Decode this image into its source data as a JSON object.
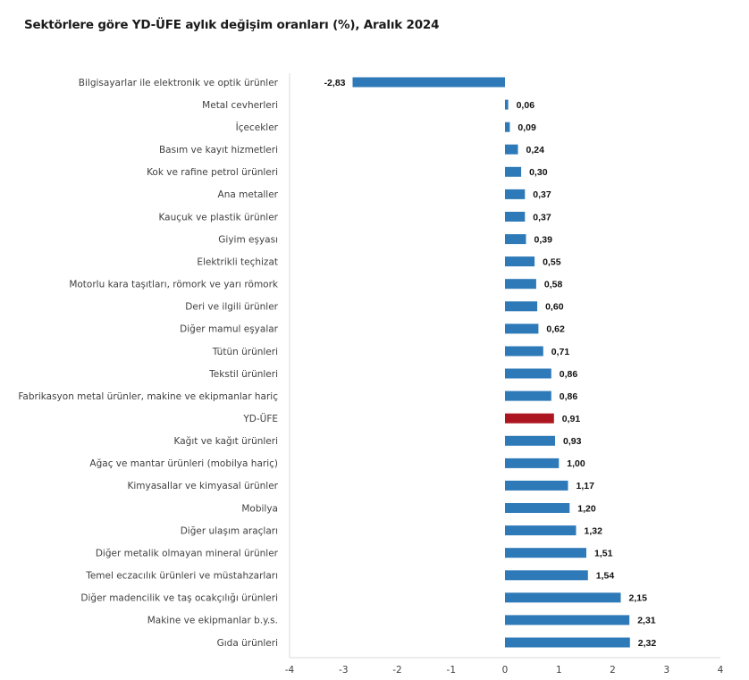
{
  "chart_data": {
    "type": "bar",
    "orientation": "horizontal",
    "title": "Sektörlere göre YD-ÜFE aylık değişim oranları (%), Aralık 2024",
    "xlabel": "",
    "ylabel": "",
    "xlim": [
      -4,
      4
    ],
    "xticks": [
      "-4",
      "-3",
      "-2",
      "-1",
      "0",
      "1",
      "2",
      "3",
      "4"
    ],
    "grid": false,
    "legend": "none",
    "colors": {
      "default": "#2e7ab8",
      "highlight": "#ad1520"
    },
    "categories": [
      "Bilgisayarlar ile elektronik ve optik ürünler",
      "Metal cevherleri",
      "İçecekler",
      "Basım ve kayıt hizmetleri",
      "Kok ve rafine petrol ürünleri",
      "Ana metaller",
      "Kauçuk ve plastik ürünler",
      "Giyim eşyası",
      "Elektrikli teçhizat",
      "Motorlu kara taşıtları, römork ve yarı römork",
      "Deri ve ilgili ürünler",
      "Diğer mamul eşyalar",
      "Tütün ürünleri",
      "Tekstil ürünleri",
      "Fabrikasyon metal ürünler, makine ve ekipmanlar hariç",
      "YD-ÜFE",
      "Kağıt ve kağıt ürünleri",
      "Ağaç ve mantar ürünleri (mobilya hariç)",
      "Kimyasallar ve kimyasal ürünler",
      "Mobilya",
      "Diğer ulaşım araçları",
      "Diğer metalik olmayan mineral ürünler",
      "Temel eczacılık ürünleri ve müstahzarları",
      "Diğer madencilik ve taş ocakçılığı ürünleri",
      "Makine ve ekipmanlar b.y.s.",
      "Gıda ürünleri"
    ],
    "values": [
      -2.83,
      0.06,
      0.09,
      0.24,
      0.3,
      0.37,
      0.37,
      0.39,
      0.55,
      0.58,
      0.6,
      0.62,
      0.71,
      0.86,
      0.86,
      0.91,
      0.93,
      1.0,
      1.17,
      1.2,
      1.32,
      1.51,
      1.54,
      2.15,
      2.31,
      2.32
    ],
    "value_labels": [
      "-2,83",
      "0,06",
      "0,09",
      "0,24",
      "0,30",
      "0,37",
      "0,37",
      "0,39",
      "0,55",
      "0,58",
      "0,60",
      "0,62",
      "0,71",
      "0,86",
      "0,86",
      "0,91",
      "0,93",
      "1,00",
      "1,17",
      "1,20",
      "1,32",
      "1,51",
      "1,54",
      "2,15",
      "2,31",
      "2,32"
    ],
    "highlight": [
      "YD-ÜFE"
    ]
  }
}
